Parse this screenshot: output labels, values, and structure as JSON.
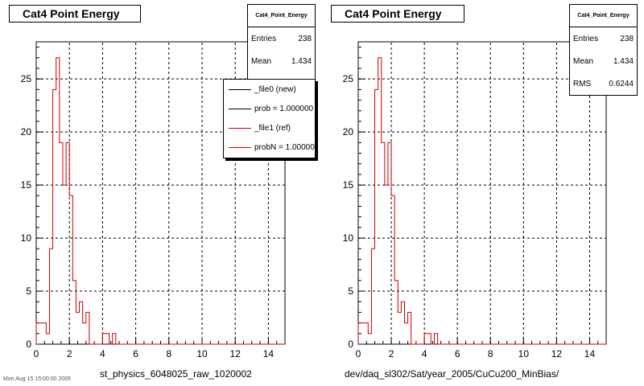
{
  "colors": {
    "new_series": "#000000",
    "ref_series": "#cc0000"
  },
  "legend": {
    "items": [
      {
        "label": "_file0 (new)",
        "color": "#000000"
      },
      {
        "label": "prob = 1.000000",
        "color": "#000000"
      },
      {
        "label": "_file1 (ref)",
        "color": "#cc0000"
      },
      {
        "label": "probN = 1.000000",
        "color": "#cc0000"
      }
    ]
  },
  "footer": "Mon Aug 15 15:00:00 2005",
  "chart_data": [
    {
      "type": "bar",
      "title": "Cat4 Point Energy",
      "xlabel": "st_physics_6048025_raw_1020002",
      "ylabel": "",
      "xlim": [
        0,
        15
      ],
      "ylim": [
        0,
        28.5
      ],
      "xticks": [
        "0",
        "2",
        "4",
        "6",
        "8",
        "10",
        "12",
        "14"
      ],
      "yticks": [
        "0",
        "5",
        "10",
        "15",
        "20",
        "25"
      ],
      "grid": true,
      "stats": {
        "title": "Cat4_Point_Energy",
        "Entries": "238",
        "Mean": "1.434"
      },
      "bin_width": 0.2,
      "series": [
        {
          "name": "_file1 (ref)",
          "color": "#cc0000",
          "values": [
            2,
            2,
            2,
            1,
            9,
            24,
            27,
            19,
            15,
            19,
            14,
            6,
            3,
            4,
            2,
            3,
            0,
            0,
            0,
            0,
            1,
            1,
            0,
            1,
            0,
            0,
            0,
            0,
            0,
            0,
            0,
            0,
            0,
            0,
            0,
            0,
            0,
            0,
            0,
            0,
            0,
            0,
            0,
            0,
            0,
            0,
            0,
            0,
            0,
            0,
            0,
            0,
            0,
            0,
            0,
            0,
            0,
            0,
            0,
            0,
            0,
            0,
            0,
            0,
            0,
            0,
            0,
            0,
            0,
            0,
            0,
            0,
            0,
            0,
            0
          ]
        }
      ]
    },
    {
      "type": "bar",
      "title": "Cat4 Point Energy",
      "xlabel": "dev/daq_sl302/Sat/year_2005/CuCu200_MinBias/",
      "ylabel": "",
      "xlim": [
        0,
        15
      ],
      "ylim": [
        0,
        28.5
      ],
      "xticks": [
        "0",
        "2",
        "4",
        "6",
        "8",
        "10",
        "12",
        "14"
      ],
      "yticks": [
        "0",
        "5",
        "10",
        "15",
        "20",
        "25"
      ],
      "grid": true,
      "stats": {
        "title": "Cat4_Point_Energy",
        "Entries": "238",
        "Mean": "1.434",
        "RMS": "0.6244"
      },
      "bin_width": 0.2,
      "series": [
        {
          "name": "_file1 (ref)",
          "color": "#cc0000",
          "values": [
            2,
            2,
            2,
            1,
            9,
            24,
            27,
            19,
            15,
            19,
            14,
            6,
            3,
            4,
            2,
            3,
            0,
            0,
            0,
            0,
            1,
            1,
            0,
            1,
            0,
            0,
            0,
            0,
            0,
            0,
            0,
            0,
            0,
            0,
            0,
            0,
            0,
            0,
            0,
            0,
            0,
            0,
            0,
            0,
            0,
            0,
            0,
            0,
            0,
            0,
            0,
            0,
            0,
            0,
            0,
            0,
            0,
            0,
            0,
            0,
            0,
            0,
            0,
            0,
            0,
            0,
            0,
            0,
            0,
            0,
            0,
            0,
            0,
            0,
            0
          ]
        }
      ]
    }
  ]
}
